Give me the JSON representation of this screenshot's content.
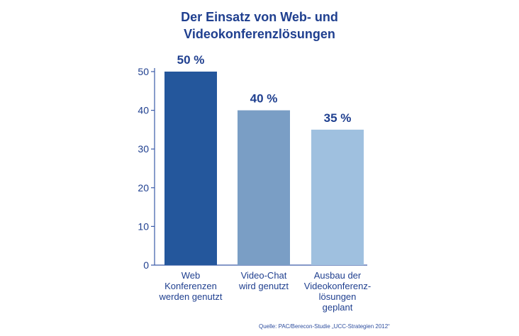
{
  "chart_data": {
    "type": "bar",
    "title_lines": [
      "Der Einsatz von Web- und",
      "Videokonferenzlösungen"
    ],
    "categories": [
      [
        "Web",
        "Konferenzen",
        "werden genutzt"
      ],
      [
        "Video-Chat",
        "wird genutzt"
      ],
      [
        "Ausbau der",
        "Videokonferenz-",
        "lösungen",
        "geplant"
      ]
    ],
    "values": [
      50,
      40,
      35
    ],
    "value_labels": [
      "50 %",
      "40 %",
      "35 %"
    ],
    "ylim": [
      0,
      50
    ],
    "yticks": [
      0,
      10,
      20,
      30,
      40,
      50
    ],
    "grid": false,
    "bar_colors": [
      "#24579c",
      "#7a9ec5",
      "#9fc0df"
    ],
    "axis_color": "#3a5aa8",
    "label_color": "#1f3f8f",
    "source": "Quelle: PAC/Berecon-Studie „UCC-Strategien 2012“"
  }
}
